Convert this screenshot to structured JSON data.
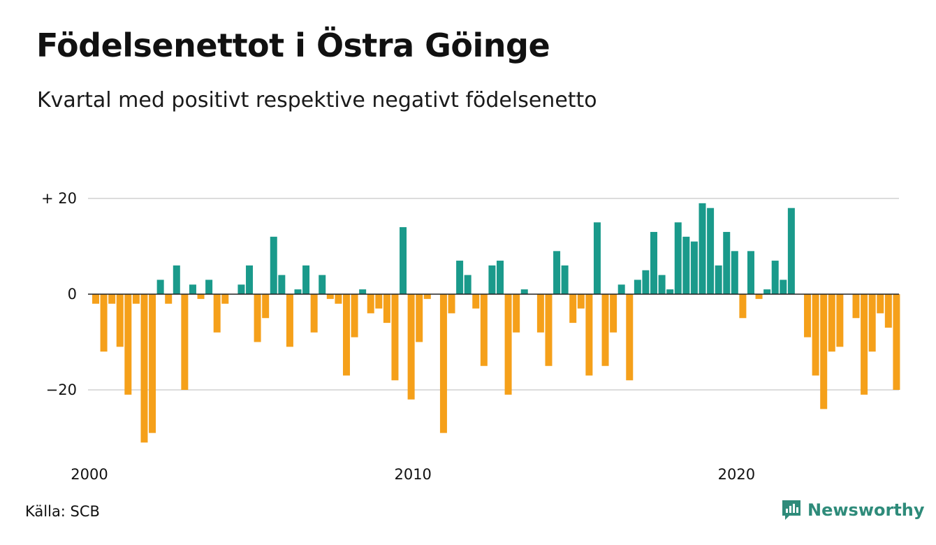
{
  "title": "Födelsenettot i Östra Göinge",
  "subtitle": "Kvartal med positivt respektive negativt födelsenetto",
  "source": "Källa: SCB",
  "brand": {
    "name": "Newsworthy",
    "icon": "newsworthy-logo-icon"
  },
  "colors": {
    "positive": "#1a9a8b",
    "negative": "#f5a01a",
    "grid": "#dcdcdc",
    "zero_line": "#222222",
    "brand": "#2e8b7a"
  },
  "chart_data": {
    "type": "bar",
    "title": "Födelsenettot i Östra Göinge",
    "subtitle": "Kvartal med positivt respektive negativt födelsenetto",
    "xlabel": "",
    "ylabel": "",
    "ylim": [
      -32,
      20
    ],
    "y_ticks": [
      {
        "value": 20,
        "label": "+ 20"
      },
      {
        "value": 0,
        "label": "0"
      },
      {
        "value": -20,
        "label": "−20"
      }
    ],
    "x_ticks": [
      {
        "value": 2000,
        "label": "2000"
      },
      {
        "value": 2010,
        "label": "2010"
      },
      {
        "value": 2020,
        "label": "2020"
      }
    ],
    "x_start": 2000,
    "periods_per_year": 4,
    "grid": true,
    "values": [
      -2,
      -12,
      -2,
      -11,
      -21,
      -2,
      -31,
      -29,
      3,
      -2,
      6,
      -20,
      2,
      -1,
      3,
      -8,
      -2,
      0,
      2,
      6,
      -10,
      -5,
      12,
      4,
      -11,
      1,
      6,
      -8,
      4,
      -1,
      -2,
      -17,
      -9,
      1,
      -4,
      -3,
      -6,
      -18,
      14,
      -22,
      -10,
      -1,
      0,
      -29,
      -4,
      7,
      4,
      -3,
      -15,
      6,
      7,
      -21,
      -8,
      1,
      0,
      -8,
      -15,
      9,
      6,
      -6,
      -3,
      -17,
      15,
      -15,
      -8,
      2,
      -18,
      3,
      5,
      13,
      4,
      1,
      15,
      12,
      11,
      19,
      18,
      6,
      13,
      9,
      -5,
      9,
      -1,
      1,
      7,
      3,
      18,
      0,
      -9,
      -17,
      -24,
      -12,
      -11,
      0,
      -5,
      -21,
      -12,
      -4,
      -7,
      -20
    ]
  }
}
